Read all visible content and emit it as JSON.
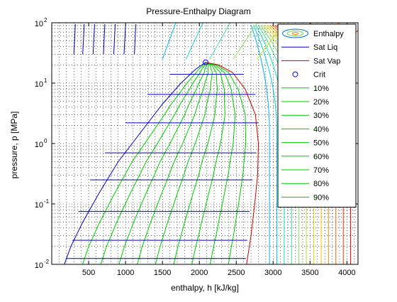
{
  "chart_data": {
    "type": "line",
    "title": "Pressure-Enthalpy Diagram",
    "xlabel": "enthalpy, h [kJ/kg]",
    "ylabel": "pressure, p [MPa]",
    "xlim": [
      0,
      4150
    ],
    "ylim": [
      0.01,
      100
    ],
    "yscale": "log",
    "grid": "dotted",
    "legend_position": "top-right",
    "x_ticks": [
      500,
      1000,
      1500,
      2000,
      2500,
      3000,
      3500,
      4000
    ],
    "y_ticks": [
      {
        "value": 0.01,
        "base": "10",
        "exp": "-2"
      },
      {
        "value": 0.1,
        "base": "10",
        "exp": "-1"
      },
      {
        "value": 1,
        "base": "10",
        "exp": "0"
      },
      {
        "value": 10,
        "base": "10",
        "exp": "1"
      },
      {
        "value": 100,
        "base": "10",
        "exp": "2"
      }
    ],
    "legend": [
      {
        "label": "Enthalpy",
        "kind": "contour"
      },
      {
        "label": "Sat Liq",
        "kind": "line",
        "color": "#0000cc"
      },
      {
        "label": "Sat Vap",
        "kind": "line",
        "color": "#cc0000"
      },
      {
        "label": "Crit",
        "kind": "marker",
        "color": "#0000ff"
      },
      {
        "label": "10%",
        "kind": "line",
        "color": "#00cc00"
      },
      {
        "label": "20%",
        "kind": "line",
        "color": "#00cc00"
      },
      {
        "label": "30%",
        "kind": "line",
        "color": "#00cc00"
      },
      {
        "label": "40%",
        "kind": "line",
        "color": "#00cc00"
      },
      {
        "label": "50%",
        "kind": "line",
        "color": "#00cc00"
      },
      {
        "label": "60%",
        "kind": "line",
        "color": "#00cc00"
      },
      {
        "label": "70%",
        "kind": "line",
        "color": "#00cc00"
      },
      {
        "label": "80%",
        "kind": "line",
        "color": "#00cc00"
      },
      {
        "label": "90%",
        "kind": "line",
        "color": "#00cc00"
      }
    ],
    "critical_point": {
      "h": 2085,
      "p": 22.06
    },
    "saturated_liquid": {
      "h": [
        170,
        260,
        420,
        640,
        900,
        1200,
        1500,
        1750,
        1950,
        2085
      ],
      "p": [
        0.01,
        0.02,
        0.05,
        0.15,
        0.5,
        1.5,
        4.5,
        10,
        17,
        22.06
      ]
    },
    "saturated_vapor": {
      "h": [
        2085,
        2260,
        2450,
        2620,
        2760,
        2800,
        2790,
        2750,
        2700,
        2640
      ],
      "p": [
        22.06,
        20,
        15,
        8,
        3,
        1,
        0.3,
        0.1,
        0.03,
        0.01
      ]
    },
    "isobars_2phase": [
      {
        "p": 0.0125,
        "h_liq": 190,
        "h_vap": 2630
      },
      {
        "p": 0.025,
        "h_liq": 280,
        "h_vap": 2650
      },
      {
        "p": 0.075,
        "h_liq": 360,
        "h_vap": 2680
      },
      {
        "p": 0.25,
        "h_liq": 520,
        "h_vap": 2720
      },
      {
        "p": 0.7,
        "h_liq": 720,
        "h_vap": 2770
      },
      {
        "p": 2.2,
        "h_liq": 1000,
        "h_vap": 2800
      },
      {
        "p": 6.5,
        "h_liq": 1300,
        "h_vap": 2760
      },
      {
        "p": 14,
        "h_liq": 1600,
        "h_vap": 2600
      }
    ],
    "quality_levels": [
      0.1,
      0.2,
      0.3,
      0.4,
      0.5,
      0.6,
      0.7,
      0.8,
      0.9
    ],
    "liquid_isotherms_h": [
      180,
      300,
      420,
      540,
      660,
      780,
      900
    ],
    "vapor_isotherms_h": [
      2950,
      3050,
      3150,
      3250,
      3350,
      3450,
      3550,
      3650,
      3750,
      3850,
      3950,
      4050
    ]
  }
}
